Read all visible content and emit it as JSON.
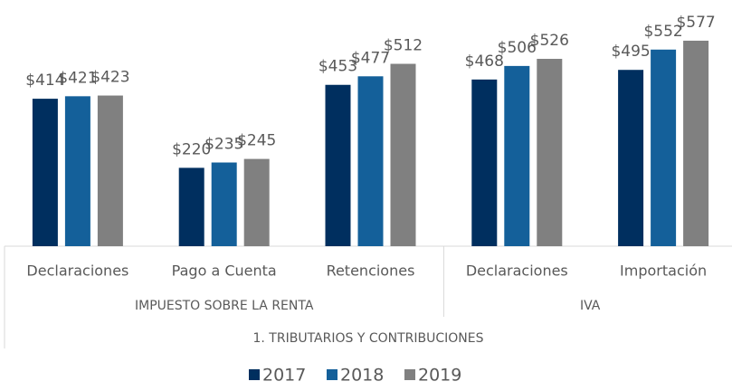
{
  "chart_data": {
    "type": "bar",
    "groups": [
      {
        "name": "IMPUESTO SOBRE LA RENTA",
        "categories": [
          "Declaraciones",
          "Pago a Cuenta",
          "Retenciones"
        ]
      },
      {
        "name": "IVA",
        "categories": [
          "Declaraciones",
          "Importación"
        ]
      }
    ],
    "supergroup": "1. TRIBUTARIOS Y CONTRIBUCIONES",
    "series": [
      {
        "name": "2017",
        "color": "#002f5f",
        "values": [
          414,
          220,
          453,
          468,
          495
        ],
        "value_labels": [
          "$414",
          "$220",
          "$453",
          "$468",
          "$495"
        ]
      },
      {
        "name": "2018",
        "color": "#14609a",
        "values": [
          421,
          235,
          477,
          506,
          552
        ],
        "value_labels": [
          "$421",
          "$235",
          "$477",
          "$506",
          "$552"
        ]
      },
      {
        "name": "2019",
        "color": "#808080",
        "values": [
          423,
          245,
          512,
          526,
          577
        ],
        "value_labels": [
          "$423",
          "$245",
          "$512",
          "$526",
          "$577"
        ]
      }
    ],
    "legend": "bottom"
  }
}
